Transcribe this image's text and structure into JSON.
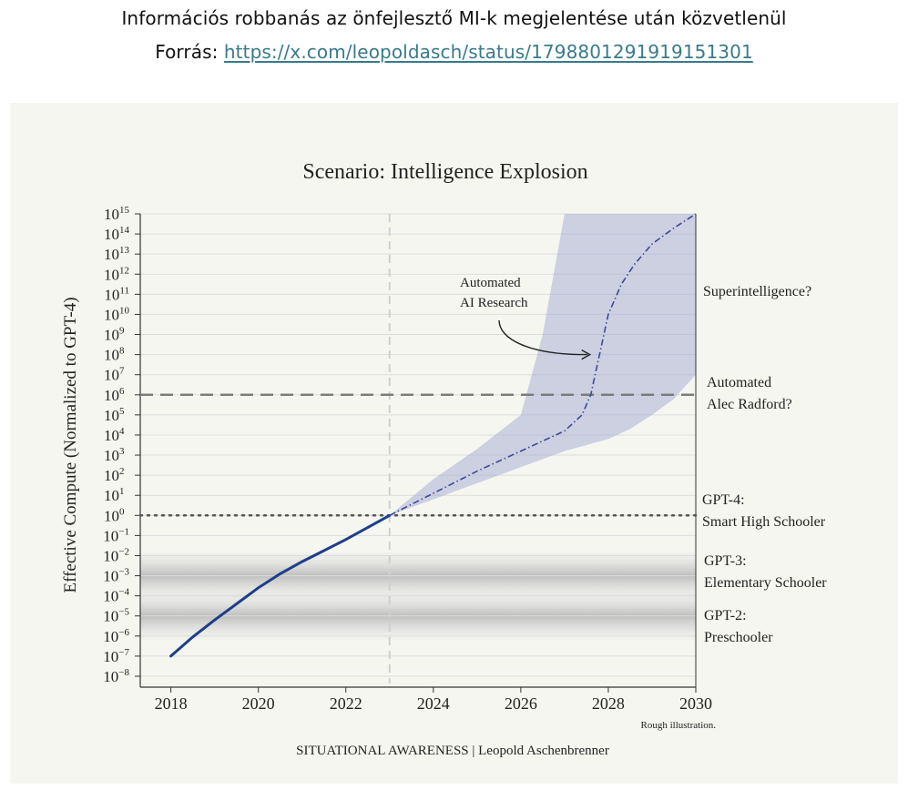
{
  "caption": {
    "line1": "Információs robbanás az önfejlesztő MI-k megjelentése után közvetlenül",
    "source_label": "Forrás: ",
    "source_link": "https://x.com/leopoldasch/status/1798801291919151301"
  },
  "chart_data": {
    "type": "line",
    "title": "Scenario: Intelligence Explosion",
    "ylabel": "Effective Compute (Normalized to GPT-4)",
    "xlabel": "",
    "yscale": "log",
    "x_ticks": [
      2018,
      2020,
      2022,
      2024,
      2026,
      2028,
      2030
    ],
    "y_tick_exponents": [
      15,
      14,
      13,
      12,
      11,
      10,
      9,
      8,
      7,
      6,
      5,
      4,
      3,
      2,
      1,
      0,
      -1,
      -2,
      -3,
      -4,
      -5,
      -6,
      -7,
      -8
    ],
    "xlim": [
      2017.3,
      2030
    ],
    "ylim_exponent": [
      -8,
      15
    ],
    "grid": true,
    "series": [
      {
        "style": "solid",
        "color": "#1d3f8a",
        "x": [
          2018,
          2018.5,
          2019,
          2019.5,
          2020,
          2020.5,
          2021,
          2021.5,
          2022,
          2022.5,
          2023
        ],
        "log10_y": [
          -7,
          -6.05,
          -5.2,
          -4.4,
          -3.6,
          -2.9,
          -2.3,
          -1.75,
          -1.2,
          -0.6,
          0
        ]
      },
      {
        "style": "dashdot",
        "color": "#3c4a95",
        "x": [
          2023,
          2024,
          2025,
          2026,
          2027,
          2027.4,
          2027.6,
          2027.8,
          2028,
          2028.3,
          2028.6,
          2029,
          2029.5,
          2030
        ],
        "log10_y": [
          0,
          1.1,
          2.2,
          3.2,
          4.2,
          5,
          6,
          8,
          10,
          11.5,
          12.5,
          13.5,
          14.3,
          15
        ]
      }
    ],
    "uncertainty_band": {
      "color": "#a9b0d4",
      "upper": {
        "x": [
          2023,
          2024,
          2025,
          2026,
          2026.5,
          2027
        ],
        "log10_y": [
          0,
          1.8,
          3.3,
          5,
          9,
          15
        ]
      },
      "lower": {
        "x": [
          2023,
          2024,
          2025,
          2026,
          2027,
          2028,
          2028.5,
          2029,
          2029.5,
          2030
        ],
        "log10_y": [
          0,
          0.8,
          1.6,
          2.4,
          3.2,
          3.8,
          4.3,
          5,
          5.8,
          7
        ]
      }
    },
    "reference_lines": [
      {
        "log10_y": 6,
        "style": "dashed",
        "label_lines": [
          "Automated",
          "Alec Radford?"
        ]
      },
      {
        "log10_y": 0,
        "style": "dotted",
        "label_lines": [
          "GPT-4:",
          "Smart High Schooler"
        ]
      }
    ],
    "bands": [
      {
        "log10_y": -3,
        "label_lines": [
          "GPT-3:",
          "Elementary Schooler"
        ]
      },
      {
        "log10_y": -5,
        "label_lines": [
          "GPT-2:",
          "Preschooler"
        ]
      }
    ],
    "vertical_marker": {
      "x": 2023,
      "style": "dashed"
    },
    "annotations": [
      {
        "lines": [
          "Automated",
          "AI Research"
        ],
        "arrow_to": {
          "x": 2027.6,
          "log10_y": 8
        }
      },
      {
        "lines": [
          "Superintelligence?"
        ]
      }
    ],
    "footnote": "Rough illustration.",
    "credit": "SITUATIONAL AWARENESS | Leopold Aschenbrenner"
  }
}
